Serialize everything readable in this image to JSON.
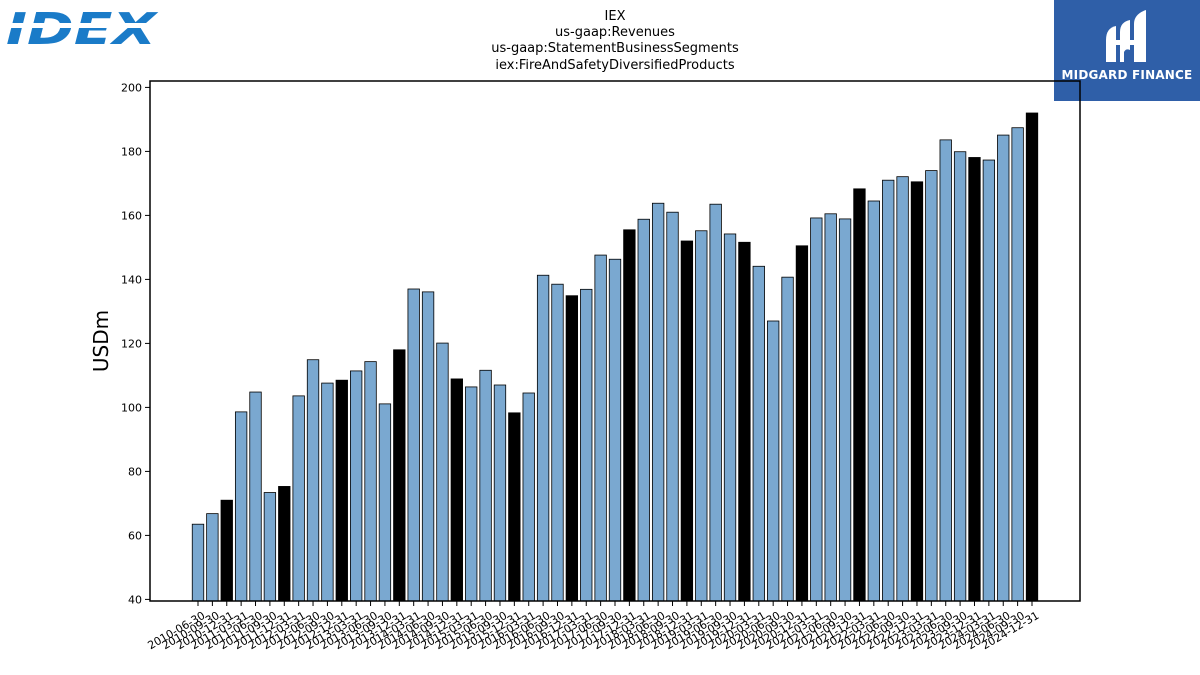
{
  "branding": {
    "company_logo_text": "IDEX",
    "publisher_logo_text": "MIDGARD FINANCE",
    "company_logo_color": "#1a7bc8",
    "publisher_bg_color": "#2f5fa8"
  },
  "chart_data": {
    "type": "bar",
    "title": [
      "IEX",
      "us-gaap:Revenues",
      "us-gaap:StatementBusinessSegments",
      "iex:FireAndSafetyDiversifiedProducts"
    ],
    "xlabel": "",
    "ylabel": "USDm",
    "ylim": [
      39.5,
      202
    ],
    "yticks": [
      40,
      60,
      80,
      100,
      120,
      140,
      160,
      180,
      200
    ],
    "grid": false,
    "legend": "none",
    "colors": {
      "quarterly": "#7aa8d0",
      "annual": "#000000"
    },
    "categories": [
      "2010-06-30",
      "2010-09-30",
      "2010-12-31",
      "2011-03-31",
      "2011-06-30",
      "2011-09-30",
      "2011-12-31",
      "2012-03-31",
      "2012-06-30",
      "2012-09-30",
      "2012-12-31",
      "2013-03-31",
      "2013-06-30",
      "2013-09-30",
      "2013-12-31",
      "2014-03-31",
      "2014-06-30",
      "2014-09-30",
      "2014-12-31",
      "2015-03-31",
      "2015-06-30",
      "2015-09-30",
      "2015-12-31",
      "2016-03-31",
      "2016-06-30",
      "2016-09-30",
      "2016-12-31",
      "2017-03-31",
      "2017-06-30",
      "2017-09-30",
      "2017-12-31",
      "2018-03-31",
      "2018-06-30",
      "2018-09-30",
      "2018-12-31",
      "2019-03-31",
      "2019-06-30",
      "2019-09-30",
      "2019-12-31",
      "2020-03-31",
      "2020-06-30",
      "2020-09-30",
      "2020-12-31",
      "2021-03-31",
      "2021-06-30",
      "2021-09-30",
      "2021-12-31",
      "2022-03-31",
      "2022-06-30",
      "2022-09-30",
      "2022-12-31",
      "2023-03-31",
      "2023-06-30",
      "2023-09-30",
      "2023-12-31",
      "2024-03-31",
      "2024-06-30",
      "2024-09-30",
      "2024-12-31"
    ],
    "values": [
      63.5,
      66.8,
      71.0,
      98.6,
      104.8,
      73.4,
      75.3,
      103.6,
      114.9,
      107.6,
      108.5,
      111.4,
      114.3,
      101.1,
      118.0,
      137.0,
      136.1,
      120.1,
      108.9,
      106.4,
      111.6,
      107.0,
      98.3,
      104.5,
      141.3,
      138.5,
      134.9,
      136.9,
      147.6,
      146.3,
      155.5,
      158.8,
      163.8,
      161.0,
      152.0,
      155.2,
      163.5,
      154.2,
      151.6,
      144.1,
      127.0,
      140.7,
      150.5,
      159.2,
      160.5,
      158.9,
      168.3,
      164.5,
      171.0,
      172.1,
      170.5,
      174.0,
      183.6,
      179.9,
      178.1,
      177.3,
      185.1,
      187.4,
      192.0
    ],
    "annual_flags": [
      false,
      false,
      true,
      false,
      false,
      false,
      true,
      false,
      false,
      false,
      true,
      false,
      false,
      false,
      true,
      false,
      false,
      false,
      true,
      false,
      false,
      false,
      true,
      false,
      false,
      false,
      true,
      false,
      false,
      false,
      true,
      false,
      false,
      false,
      true,
      false,
      false,
      false,
      true,
      false,
      false,
      false,
      true,
      false,
      false,
      false,
      true,
      false,
      false,
      false,
      true,
      false,
      false,
      false,
      true,
      false,
      false,
      false,
      true
    ]
  }
}
